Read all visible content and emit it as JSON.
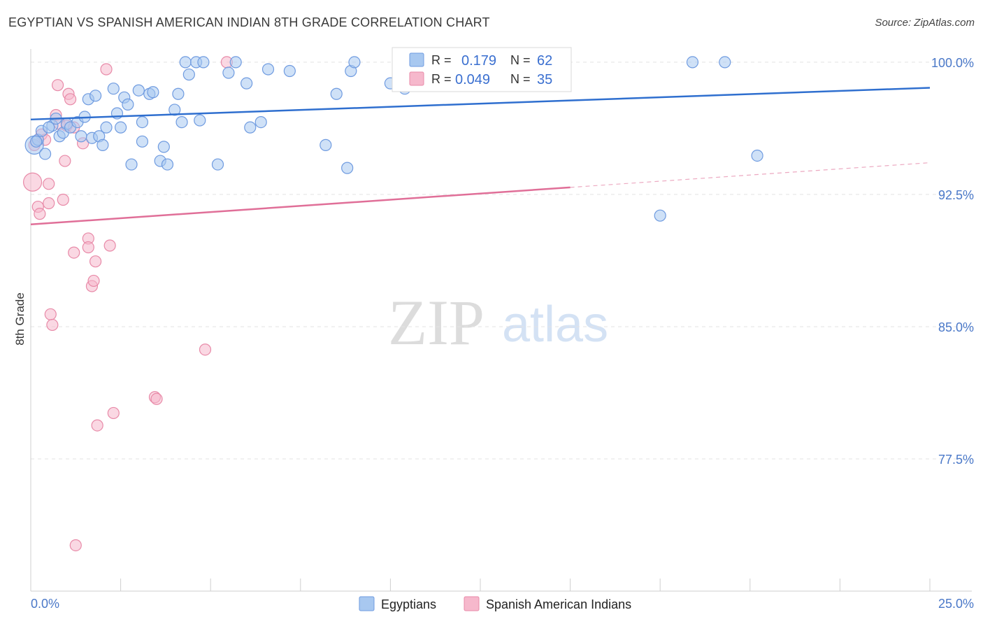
{
  "header": {
    "title": "EGYPTIAN VS SPANISH AMERICAN INDIAN 8TH GRADE CORRELATION CHART",
    "source": "Source: ZipAtlas.com"
  },
  "watermark": {
    "zip": "ZIP",
    "atlas": "atlas"
  },
  "legend": {
    "r_label": "R =",
    "n_label": "N =",
    "series": [
      {
        "name": "Egyptians",
        "r": "0.179",
        "n": "62",
        "fill": "#a8c8f0",
        "stroke": "#6f9be0"
      },
      {
        "name": "Spanish American Indians",
        "r": "0.049",
        "n": "35",
        "fill": "#f6b8cc",
        "stroke": "#e88aa8"
      }
    ]
  },
  "chart_data": {
    "type": "scatter",
    "title": "EGYPTIAN VS SPANISH AMERICAN INDIAN 8TH GRADE CORRELATION CHART",
    "xlabel": "",
    "ylabel": "8th Grade",
    "xlim": [
      0,
      25
    ],
    "ylim": [
      70.0,
      100.75
    ],
    "x_tick_labels": [
      "0.0%",
      "25.0%"
    ],
    "y_ticks": [
      100.0,
      92.5,
      85.0,
      77.5
    ],
    "y_tick_labels": [
      "100.0%",
      "92.5%",
      "85.0%",
      "77.5%"
    ],
    "grid": true,
    "colors": {
      "blue_point": "#a8c8f0",
      "blue_line": "#2f6fcf",
      "pink_point": "#f6b8cc",
      "pink_line": "#e06f98",
      "tick": "#4a78c8"
    },
    "series": [
      {
        "name": "Egyptians",
        "trend": {
          "x0": 0,
          "y0": 96.75,
          "x1": 25,
          "y1": 98.55,
          "solid_until": 25
        },
        "points": [
          {
            "x": 0.1,
            "y": 95.3,
            "s": "l"
          },
          {
            "x": 0.2,
            "y": 95.6,
            "s": "m"
          },
          {
            "x": 0.3,
            "y": 96.1,
            "s": "m"
          },
          {
            "x": 0.4,
            "y": 94.8,
            "s": "m"
          },
          {
            "x": 0.6,
            "y": 96.4,
            "s": "m"
          },
          {
            "x": 0.7,
            "y": 96.8,
            "s": "m"
          },
          {
            "x": 0.8,
            "y": 95.8,
            "s": "m"
          },
          {
            "x": 0.9,
            "y": 96.0,
            "s": "m"
          },
          {
            "x": 1.0,
            "y": 96.5,
            "s": "m"
          },
          {
            "x": 1.1,
            "y": 96.3,
            "s": "m"
          },
          {
            "x": 1.3,
            "y": 96.6,
            "s": "m"
          },
          {
            "x": 1.4,
            "y": 95.8,
            "s": "m"
          },
          {
            "x": 1.5,
            "y": 96.9,
            "s": "m"
          },
          {
            "x": 1.6,
            "y": 97.9,
            "s": "m"
          },
          {
            "x": 1.7,
            "y": 95.7,
            "s": "m"
          },
          {
            "x": 1.8,
            "y": 98.1,
            "s": "m"
          },
          {
            "x": 1.9,
            "y": 95.8,
            "s": "m"
          },
          {
            "x": 2.0,
            "y": 95.3,
            "s": "m"
          },
          {
            "x": 2.1,
            "y": 96.3,
            "s": "m"
          },
          {
            "x": 2.3,
            "y": 98.5,
            "s": "m"
          },
          {
            "x": 2.4,
            "y": 97.1,
            "s": "m"
          },
          {
            "x": 2.5,
            "y": 96.3,
            "s": "m"
          },
          {
            "x": 2.6,
            "y": 98.0,
            "s": "m"
          },
          {
            "x": 2.7,
            "y": 97.6,
            "s": "m"
          },
          {
            "x": 2.8,
            "y": 94.2,
            "s": "m"
          },
          {
            "x": 3.0,
            "y": 98.4,
            "s": "m"
          },
          {
            "x": 3.1,
            "y": 95.5,
            "s": "m"
          },
          {
            "x": 3.1,
            "y": 96.6,
            "s": "m"
          },
          {
            "x": 3.3,
            "y": 98.2,
            "s": "m"
          },
          {
            "x": 3.4,
            "y": 98.3,
            "s": "m"
          },
          {
            "x": 3.6,
            "y": 94.4,
            "s": "m"
          },
          {
            "x": 3.7,
            "y": 95.2,
            "s": "m"
          },
          {
            "x": 3.8,
            "y": 94.2,
            "s": "m"
          },
          {
            "x": 4.0,
            "y": 97.3,
            "s": "m"
          },
          {
            "x": 4.1,
            "y": 98.2,
            "s": "m"
          },
          {
            "x": 4.2,
            "y": 96.6,
            "s": "m"
          },
          {
            "x": 4.3,
            "y": 100.0,
            "s": "m"
          },
          {
            "x": 4.4,
            "y": 99.3,
            "s": "m"
          },
          {
            "x": 4.6,
            "y": 100.0,
            "s": "m"
          },
          {
            "x": 4.7,
            "y": 96.7,
            "s": "m"
          },
          {
            "x": 4.8,
            "y": 100.0,
            "s": "m"
          },
          {
            "x": 5.2,
            "y": 94.2,
            "s": "m"
          },
          {
            "x": 5.5,
            "y": 99.4,
            "s": "m"
          },
          {
            "x": 5.7,
            "y": 100.0,
            "s": "m"
          },
          {
            "x": 6.0,
            "y": 98.8,
            "s": "m"
          },
          {
            "x": 6.1,
            "y": 96.3,
            "s": "m"
          },
          {
            "x": 6.4,
            "y": 96.6,
            "s": "m"
          },
          {
            "x": 6.6,
            "y": 99.6,
            "s": "m"
          },
          {
            "x": 7.2,
            "y": 99.5,
            "s": "m"
          },
          {
            "x": 8.2,
            "y": 95.3,
            "s": "m"
          },
          {
            "x": 8.5,
            "y": 98.2,
            "s": "m"
          },
          {
            "x": 8.8,
            "y": 94.0,
            "s": "m"
          },
          {
            "x": 8.9,
            "y": 99.5,
            "s": "m"
          },
          {
            "x": 9.0,
            "y": 100.0,
            "s": "m"
          },
          {
            "x": 10.0,
            "y": 98.8,
            "s": "m"
          },
          {
            "x": 10.4,
            "y": 98.5,
            "s": "m"
          },
          {
            "x": 17.5,
            "y": 91.3,
            "s": "m"
          },
          {
            "x": 18.4,
            "y": 100.0,
            "s": "m"
          },
          {
            "x": 20.2,
            "y": 94.7,
            "s": "m"
          },
          {
            "x": 19.3,
            "y": 100.0,
            "s": "m"
          },
          {
            "x": 0.15,
            "y": 95.5,
            "s": "m"
          },
          {
            "x": 0.5,
            "y": 96.3,
            "s": "m"
          }
        ]
      },
      {
        "name": "Spanish American Indians",
        "trend": {
          "x0": 0,
          "y0": 90.8,
          "x1": 15,
          "y1": 92.9,
          "dashed_to": 25,
          "dashed_y1": 94.3
        },
        "points": [
          {
            "x": 0.05,
            "y": 93.2,
            "s": "l"
          },
          {
            "x": 0.1,
            "y": 95.3,
            "s": "m"
          },
          {
            "x": 0.2,
            "y": 91.8,
            "s": "m"
          },
          {
            "x": 0.25,
            "y": 91.4,
            "s": "m"
          },
          {
            "x": 0.3,
            "y": 95.9,
            "s": "m"
          },
          {
            "x": 0.4,
            "y": 95.6,
            "s": "m"
          },
          {
            "x": 0.5,
            "y": 92.0,
            "s": "m"
          },
          {
            "x": 0.5,
            "y": 93.1,
            "s": "m"
          },
          {
            "x": 0.55,
            "y": 85.7,
            "s": "m"
          },
          {
            "x": 0.6,
            "y": 85.1,
            "s": "m"
          },
          {
            "x": 0.7,
            "y": 97.0,
            "s": "m"
          },
          {
            "x": 0.75,
            "y": 98.7,
            "s": "m"
          },
          {
            "x": 0.8,
            "y": 96.5,
            "s": "m"
          },
          {
            "x": 0.9,
            "y": 92.2,
            "s": "m"
          },
          {
            "x": 0.95,
            "y": 94.4,
            "s": "m"
          },
          {
            "x": 1.0,
            "y": 96.4,
            "s": "m"
          },
          {
            "x": 1.05,
            "y": 98.2,
            "s": "m"
          },
          {
            "x": 1.1,
            "y": 97.9,
            "s": "m"
          },
          {
            "x": 1.2,
            "y": 96.3,
            "s": "m"
          },
          {
            "x": 1.2,
            "y": 89.2,
            "s": "m"
          },
          {
            "x": 1.25,
            "y": 72.6,
            "s": "m"
          },
          {
            "x": 1.45,
            "y": 95.4,
            "s": "m"
          },
          {
            "x": 1.6,
            "y": 90.0,
            "s": "m"
          },
          {
            "x": 1.6,
            "y": 89.5,
            "s": "m"
          },
          {
            "x": 1.7,
            "y": 87.3,
            "s": "m"
          },
          {
            "x": 1.75,
            "y": 87.6,
            "s": "m"
          },
          {
            "x": 1.8,
            "y": 88.7,
            "s": "m"
          },
          {
            "x": 1.85,
            "y": 79.4,
            "s": "m"
          },
          {
            "x": 2.1,
            "y": 99.6,
            "s": "m"
          },
          {
            "x": 2.2,
            "y": 89.6,
            "s": "m"
          },
          {
            "x": 2.3,
            "y": 80.1,
            "s": "m"
          },
          {
            "x": 3.45,
            "y": 81.0,
            "s": "m"
          },
          {
            "x": 3.5,
            "y": 80.9,
            "s": "m"
          },
          {
            "x": 4.85,
            "y": 83.7,
            "s": "m"
          },
          {
            "x": 5.45,
            "y": 100.0,
            "s": "m"
          }
        ]
      }
    ]
  }
}
